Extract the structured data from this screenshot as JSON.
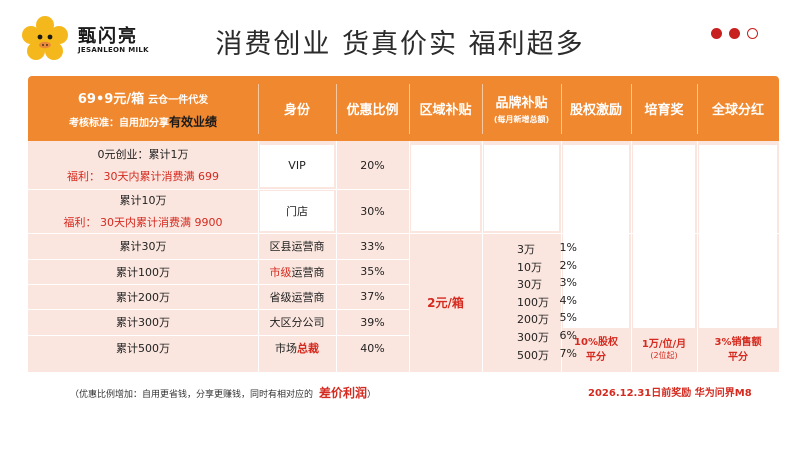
{
  "brand": {
    "name": "甄闪亮",
    "sub": "JESANLEON MILK"
  },
  "title": "消费创业  货真价实  福利超多",
  "header": {
    "price": "69•9元/箱",
    "price_note": "云仓一件代发",
    "standard_prefix": "考核标准：自用加分享",
    "standard_emph": "有效业绩",
    "columns": [
      "身份",
      "优惠比例",
      "区域补贴",
      "品牌补贴",
      "股权激励",
      "培育奖",
      "全球分红"
    ],
    "brand_sub": "(每月新增总额)"
  },
  "rows": [
    {
      "left": "0元创业：累计1万",
      "perk": "福利：  30天内累计消费满 699",
      "identity": "VIP",
      "ratio": "20%"
    },
    {
      "left": "累计10万",
      "perk": "福利：  30天内累计消费满 9900",
      "identity": "门店",
      "ratio": "30%"
    },
    {
      "left": "累计30万",
      "identity": "区县运营商",
      "ratio": "33%"
    },
    {
      "left": "累计100万",
      "identity_red": "市级",
      "identity": "运营商",
      "ratio": "35%"
    },
    {
      "left": "累计200万",
      "identity": "省级运营商",
      "ratio": "37%"
    },
    {
      "left": "累计300万",
      "identity": "大区分公司",
      "ratio": "39%"
    },
    {
      "left": "累计500万",
      "identity": "市场",
      "identity_red": "总裁",
      "ratio": "40%"
    }
  ],
  "region_subsidy": "2元/箱",
  "brand_subsidy": [
    {
      "amount": "3万",
      "pct": "1%"
    },
    {
      "amount": "10万",
      "pct": "2%"
    },
    {
      "amount": "30万",
      "pct": "3%"
    },
    {
      "amount": "100万",
      "pct": "4%"
    },
    {
      "amount": "200万",
      "pct": "5%"
    },
    {
      "amount": "300万",
      "pct": "6%"
    },
    {
      "amount": "500万",
      "pct": "7%"
    }
  ],
  "equity": {
    "line1": "10%股权",
    "line2": "平分"
  },
  "nurture": {
    "line1": "1万/位/月",
    "line2": "(2位起)"
  },
  "dividend": {
    "line1": "3%销售额",
    "line2": "平分"
  },
  "footer": {
    "note": "（优惠比例增加：自用更省钱，分享更赚钱，同时有相对应的",
    "emph": "差价利润",
    "close": "）",
    "deadline": "2026.12.31日前奖励  华为问界M8"
  },
  "colors": {
    "header": "#f0882f",
    "body": "#fbe6df",
    "accent": "#c8201f"
  }
}
